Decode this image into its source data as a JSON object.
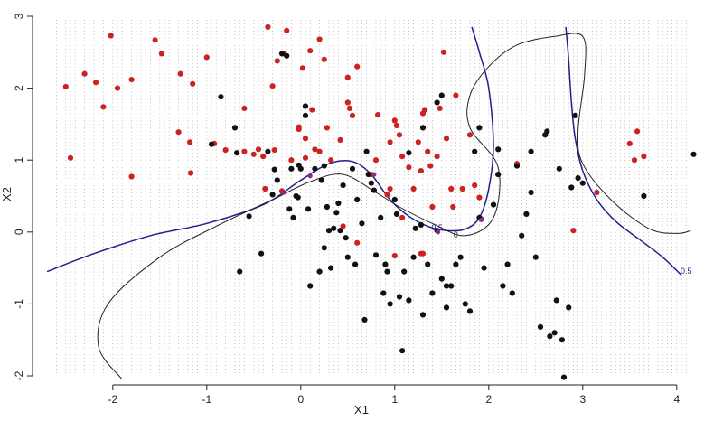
{
  "chart_data": {
    "type": "scatter",
    "xlabel": "X1",
    "ylabel": "X2",
    "xlim": [
      -2.7,
      4.3
    ],
    "ylim": [
      -2.05,
      3.0
    ],
    "x_ticks": [
      "-2",
      "-1",
      "0",
      "1",
      "2",
      "3",
      "4"
    ],
    "y_ticks": [
      "-2",
      "-1",
      "0",
      "1",
      "2",
      "3"
    ],
    "grid_style": "dotted vertical point grid",
    "colors": {
      "class_red": "#cc2222",
      "class_black": "#111111",
      "grid": "#9a9a9a",
      "bayes_boundary": "#1f1f8a",
      "contour": "#222222",
      "highlight": "#8a2b8a"
    },
    "contour_labels": [
      {
        "text": "0",
        "x": 1.65,
        "y": -0.08,
        "color": "#222222"
      },
      {
        "text": "0.5",
        "x": 4.1,
        "y": -0.58,
        "color": "#1f1f8a"
      },
      {
        "text": "0.5",
        "x": 1.45,
        "y": 0.02,
        "color": "#1f1f8a"
      }
    ],
    "series": [
      {
        "values": [
          [
            -2.5,
            2.02
          ],
          [
            -2.45,
            1.03
          ],
          [
            -2.3,
            2.2
          ],
          [
            -2.18,
            2.08
          ],
          [
            -2.1,
            1.74
          ],
          [
            -2.02,
            2.73
          ],
          [
            -1.95,
            2.0
          ],
          [
            -1.8,
            2.12
          ],
          [
            -1.8,
            0.77
          ],
          [
            -1.55,
            2.67
          ],
          [
            -1.48,
            2.48
          ],
          [
            -1.3,
            1.39
          ],
          [
            -1.28,
            2.2
          ],
          [
            -1.18,
            1.25
          ],
          [
            -1.17,
            0.82
          ],
          [
            -1.15,
            2.06
          ],
          [
            -1.0,
            2.43
          ],
          [
            -0.92,
            1.23
          ],
          [
            -0.8,
            1.14
          ],
          [
            -0.6,
            1.72
          ],
          [
            -0.6,
            1.12
          ],
          [
            -0.5,
            1.08
          ],
          [
            -0.45,
            1.15
          ],
          [
            -0.4,
            1.05
          ],
          [
            -0.38,
            0.6
          ],
          [
            -0.35,
            2.85
          ],
          [
            -0.3,
            2.03
          ],
          [
            -0.28,
            1.14
          ],
          [
            -0.25,
            2.38
          ],
          [
            -0.2,
            0.57
          ],
          [
            -0.18,
            2.48
          ],
          [
            -0.15,
            2.8
          ],
          [
            -0.1,
            1.0
          ],
          [
            -0.02,
            1.43
          ],
          [
            -0.02,
            1.46
          ],
          [
            0.02,
            2.28
          ],
          [
            0.05,
            1.3
          ],
          [
            0.05,
            1.03
          ],
          [
            0.1,
            2.52
          ],
          [
            0.12,
            1.7
          ],
          [
            0.15,
            1.15
          ],
          [
            0.2,
            1.12
          ],
          [
            0.2,
            2.68
          ],
          [
            0.25,
            2.4
          ],
          [
            0.28,
            1.45
          ],
          [
            0.32,
            1.0
          ],
          [
            0.42,
            1.28
          ],
          [
            0.45,
            0.08
          ],
          [
            0.5,
            2.15
          ],
          [
            0.5,
            1.8
          ],
          [
            0.52,
            1.72
          ],
          [
            0.55,
            1.62
          ],
          [
            0.6,
            2.3
          ],
          [
            0.6,
            -0.15
          ],
          [
            0.75,
            0.8
          ],
          [
            0.8,
            1.0
          ],
          [
            0.82,
            1.63
          ],
          [
            0.95,
            1.25
          ],
          [
            1.0,
            1.55
          ],
          [
            1.02,
            1.48
          ],
          [
            1.05,
            1.35
          ],
          [
            1.08,
            1.05
          ],
          [
            1.15,
            0.9
          ],
          [
            1.2,
            0.6
          ],
          [
            1.25,
            1.25
          ],
          [
            1.28,
            0.85
          ],
          [
            1.3,
            1.65
          ],
          [
            1.32,
            1.7
          ],
          [
            1.35,
            1.12
          ],
          [
            1.38,
            0.92
          ],
          [
            1.4,
            0.35
          ],
          [
            1.45,
            1.05
          ],
          [
            1.48,
            1.72
          ],
          [
            1.52,
            2.5
          ],
          [
            1.55,
            1.3
          ],
          [
            1.6,
            0.6
          ],
          [
            1.62,
            0.35
          ],
          [
            1.65,
            1.9
          ],
          [
            1.72,
            0.6
          ],
          [
            1.8,
            1.35
          ],
          [
            1.85,
            0.65
          ],
          [
            1.9,
            0.48
          ],
          [
            1.92,
            0.18
          ],
          [
            3.15,
            0.55
          ],
          [
            2.9,
            0.02
          ],
          [
            3.5,
            1.23
          ],
          [
            3.55,
            1.0
          ],
          [
            3.58,
            1.4
          ],
          [
            3.65,
            1.05
          ],
          [
            2.3,
            0.95
          ],
          [
            1.3,
            -0.3
          ],
          [
            1.28,
            -0.3
          ],
          [
            1.0,
            -0.33
          ],
          [
            0.95,
            0.6
          ],
          [
            0.92,
            0.52
          ],
          [
            1.08,
            0.2
          ]
        ]
      },
      {
        "values": [
          [
            -0.95,
            1.22
          ],
          [
            -0.85,
            1.88
          ],
          [
            -0.7,
            1.45
          ],
          [
            -0.68,
            1.1
          ],
          [
            -0.65,
            -0.55
          ],
          [
            -0.55,
            0.22
          ],
          [
            -0.42,
            -0.3
          ],
          [
            -0.35,
            1.12
          ],
          [
            -0.3,
            0.52
          ],
          [
            -0.28,
            0.87
          ],
          [
            -0.25,
            0.72
          ],
          [
            -0.2,
            2.48
          ],
          [
            -0.15,
            2.45
          ],
          [
            -0.12,
            0.32
          ],
          [
            -0.1,
            0.88
          ],
          [
            -0.08,
            0.2
          ],
          [
            -0.05,
            0.5
          ],
          [
            -0.03,
            0.48
          ],
          [
            -0.02,
            0.93
          ],
          [
            0.0,
            0.88
          ],
          [
            0.05,
            1.62
          ],
          [
            0.05,
            1.75
          ],
          [
            0.08,
            0.32
          ],
          [
            0.1,
            -0.75
          ],
          [
            0.15,
            0.88
          ],
          [
            0.2,
            -0.55
          ],
          [
            0.22,
            0.72
          ],
          [
            0.25,
            -0.22
          ],
          [
            0.28,
            0.35
          ],
          [
            0.3,
            0.02
          ],
          [
            0.32,
            -0.5
          ],
          [
            0.35,
            0.05
          ],
          [
            0.38,
            0.27
          ],
          [
            0.4,
            0.4
          ],
          [
            0.42,
            0.02
          ],
          [
            0.45,
            0.65
          ],
          [
            0.48,
            -0.08
          ],
          [
            0.5,
            -0.35
          ],
          [
            0.55,
            0.88
          ],
          [
            0.58,
            -0.45
          ],
          [
            0.6,
            0.45
          ],
          [
            0.65,
            0.12
          ],
          [
            0.68,
            -1.22
          ],
          [
            0.7,
            1.12
          ],
          [
            0.72,
            0.8
          ],
          [
            0.75,
            0.68
          ],
          [
            0.78,
            0.58
          ],
          [
            0.8,
            -0.32
          ],
          [
            0.85,
            0.2
          ],
          [
            0.88,
            -0.85
          ],
          [
            0.9,
            -0.45
          ],
          [
            0.92,
            -0.55
          ],
          [
            0.95,
            -1.0
          ],
          [
            1.0,
            0.45
          ],
          [
            1.02,
            0.25
          ],
          [
            1.05,
            -0.9
          ],
          [
            1.08,
            -1.65
          ],
          [
            1.1,
            -0.55
          ],
          [
            1.15,
            -0.95
          ],
          [
            1.2,
            -0.35
          ],
          [
            1.22,
            0.05
          ],
          [
            1.28,
            0.1
          ],
          [
            1.3,
            -1.15
          ],
          [
            1.35,
            -0.45
          ],
          [
            1.4,
            -0.85
          ],
          [
            1.45,
            0.02
          ],
          [
            1.5,
            -0.65
          ],
          [
            1.55,
            -0.75
          ],
          [
            1.55,
            -1.05
          ],
          [
            1.6,
            -0.75
          ],
          [
            1.65,
            -0.45
          ],
          [
            1.7,
            -0.35
          ],
          [
            1.75,
            -1.0
          ],
          [
            1.8,
            -1.1
          ],
          [
            1.85,
            1.12
          ],
          [
            1.9,
            0.2
          ],
          [
            1.95,
            -0.5
          ],
          [
            2.05,
            0.38
          ],
          [
            2.1,
            1.15
          ],
          [
            2.15,
            -0.75
          ],
          [
            2.2,
            -0.45
          ],
          [
            2.25,
            -0.85
          ],
          [
            2.3,
            0.92
          ],
          [
            2.35,
            -0.05
          ],
          [
            2.4,
            0.25
          ],
          [
            2.45,
            0.55
          ],
          [
            2.5,
            -0.35
          ],
          [
            2.55,
            -1.32
          ],
          [
            2.6,
            1.35
          ],
          [
            2.62,
            1.4
          ],
          [
            2.65,
            -1.45
          ],
          [
            2.7,
            -1.4
          ],
          [
            2.72,
            -0.95
          ],
          [
            2.75,
            0.88
          ],
          [
            2.78,
            -1.5
          ],
          [
            2.8,
            -2.02
          ],
          [
            2.85,
            -1.05
          ],
          [
            2.88,
            0.62
          ],
          [
            2.92,
            1.62
          ],
          [
            2.95,
            0.75
          ],
          [
            3.0,
            0.68
          ],
          [
            3.65,
            0.5
          ],
          [
            4.18,
            1.08
          ],
          [
            2.45,
            1.12
          ],
          [
            2.1,
            0.8
          ],
          [
            1.9,
            1.45
          ],
          [
            1.5,
            1.9
          ],
          [
            1.45,
            1.8
          ],
          [
            1.3,
            1.45
          ],
          [
            1.15,
            1.1
          ],
          [
            0.25,
            0.92
          ]
        ]
      },
      {
        "values": [
          [
            -0.18,
            0.55
          ],
          [
            0.78,
            0.8
          ],
          [
            1.92,
            0.17
          ],
          [
            0.1,
            0.78
          ],
          [
            1.46,
            0.0
          ]
        ]
      }
    ],
    "curves": [
      {
        "points": [
          [
            -2.7,
            -0.55
          ],
          [
            -2.2,
            -0.3
          ],
          [
            -1.6,
            -0.05
          ],
          [
            -1.0,
            0.12
          ],
          [
            -0.4,
            0.38
          ],
          [
            0.0,
            0.72
          ],
          [
            0.3,
            0.95
          ],
          [
            0.55,
            0.98
          ],
          [
            0.75,
            0.8
          ],
          [
            0.95,
            0.45
          ],
          [
            1.15,
            0.22
          ],
          [
            1.35,
            0.08
          ],
          [
            1.55,
            0.02
          ],
          [
            1.75,
            0.04
          ],
          [
            1.9,
            0.2
          ],
          [
            2.0,
            0.6
          ],
          [
            2.05,
            1.2
          ],
          [
            2.0,
            2.0
          ],
          [
            1.9,
            2.5
          ],
          [
            1.82,
            2.85
          ]
        ]
      },
      {
        "points": [
          [
            2.82,
            2.85
          ],
          [
            2.85,
            2.4
          ],
          [
            2.88,
            1.8
          ],
          [
            2.92,
            1.3
          ],
          [
            3.0,
            0.85
          ],
          [
            3.15,
            0.45
          ],
          [
            3.35,
            0.15
          ],
          [
            3.6,
            -0.1
          ],
          [
            3.85,
            -0.35
          ],
          [
            4.05,
            -0.6
          ]
        ]
      },
      {
        "points": [
          [
            -1.9,
            -2.05
          ],
          [
            -2.15,
            -1.6
          ],
          [
            -2.05,
            -1.0
          ],
          [
            -1.5,
            -0.35
          ],
          [
            -0.9,
            0.08
          ],
          [
            -0.3,
            0.45
          ],
          [
            0.1,
            0.7
          ],
          [
            0.45,
            0.8
          ],
          [
            0.8,
            0.55
          ],
          [
            1.05,
            0.35
          ],
          [
            1.4,
            0.12
          ],
          [
            1.75,
            -0.05
          ],
          [
            2.05,
            0.2
          ],
          [
            2.1,
            0.9
          ],
          [
            1.8,
            1.45
          ],
          [
            1.8,
            1.9
          ],
          [
            2.0,
            2.3
          ],
          [
            2.3,
            2.6
          ],
          [
            2.7,
            2.72
          ],
          [
            3.0,
            2.72
          ],
          [
            3.02,
            2.2
          ],
          [
            2.95,
            1.4
          ],
          [
            3.0,
            0.95
          ],
          [
            3.3,
            0.45
          ],
          [
            3.7,
            0.05
          ],
          [
            4.0,
            -0.02
          ],
          [
            4.15,
            0.02
          ]
        ]
      }
    ]
  }
}
